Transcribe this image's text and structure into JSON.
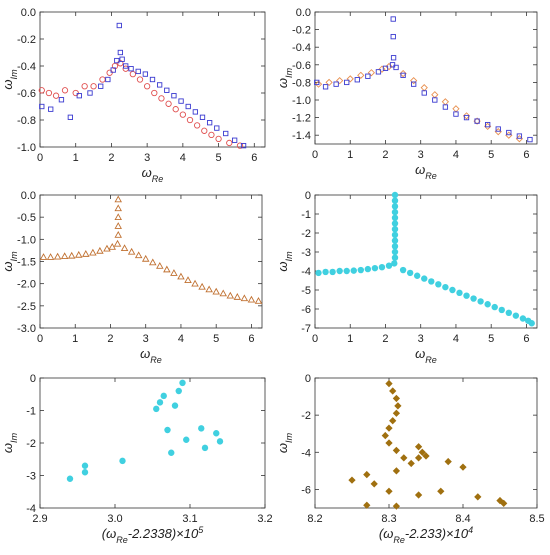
{
  "chart_data": [
    {
      "type": "scatter",
      "xlabel": "ωRe",
      "ylabel": "ωIm",
      "xlim": [
        0,
        6.3
      ],
      "ylim": [
        -1.0,
        0.0
      ],
      "xticks": [
        "0",
        "1",
        "2",
        "3",
        "4",
        "5",
        "6"
      ],
      "yticks": [
        "0.0",
        "-0.2",
        "-0.4",
        "-0.6",
        "-0.8",
        "-1.0"
      ],
      "series": [
        {
          "marker": "circle",
          "color": "#e05050",
          "points": [
            [
              0.05,
              -0.58
            ],
            [
              0.25,
              -0.6
            ],
            [
              0.45,
              -0.62
            ],
            [
              0.7,
              -0.58
            ],
            [
              1.0,
              -0.6
            ],
            [
              1.25,
              -0.55
            ],
            [
              1.5,
              -0.55
            ],
            [
              1.75,
              -0.5
            ],
            [
              1.95,
              -0.45
            ],
            [
              2.1,
              -0.4
            ],
            [
              2.25,
              -0.38
            ],
            [
              2.4,
              -0.42
            ],
            [
              2.6,
              -0.46
            ],
            [
              2.8,
              -0.5
            ],
            [
              3.0,
              -0.55
            ],
            [
              3.2,
              -0.6
            ],
            [
              3.4,
              -0.64
            ],
            [
              3.6,
              -0.68
            ],
            [
              3.8,
              -0.72
            ],
            [
              4.0,
              -0.76
            ],
            [
              4.2,
              -0.8
            ],
            [
              4.4,
              -0.84
            ],
            [
              4.6,
              -0.88
            ],
            [
              4.8,
              -0.91
            ],
            [
              5.0,
              -0.94
            ],
            [
              5.3,
              -0.97
            ],
            [
              5.6,
              -0.99
            ]
          ]
        },
        {
          "marker": "square",
          "color": "#3a3ad0",
          "points": [
            [
              0.05,
              -0.7
            ],
            [
              0.3,
              -0.72
            ],
            [
              0.6,
              -0.65
            ],
            [
              0.85,
              -0.78
            ],
            [
              1.1,
              -0.62
            ],
            [
              1.4,
              -0.6
            ],
            [
              1.7,
              -0.55
            ],
            [
              1.9,
              -0.5
            ],
            [
              2.05,
              -0.43
            ],
            [
              2.15,
              -0.36
            ],
            [
              2.22,
              -0.1
            ],
            [
              2.25,
              -0.3
            ],
            [
              2.3,
              -0.35
            ],
            [
              2.4,
              -0.4
            ],
            [
              2.55,
              -0.42
            ],
            [
              2.75,
              -0.44
            ],
            [
              2.95,
              -0.46
            ],
            [
              3.15,
              -0.5
            ],
            [
              3.35,
              -0.54
            ],
            [
              3.55,
              -0.58
            ],
            [
              3.75,
              -0.62
            ],
            [
              3.95,
              -0.66
            ],
            [
              4.15,
              -0.7
            ],
            [
              4.35,
              -0.74
            ],
            [
              4.55,
              -0.78
            ],
            [
              4.75,
              -0.82
            ],
            [
              4.95,
              -0.86
            ],
            [
              5.2,
              -0.9
            ],
            [
              5.45,
              -0.95
            ],
            [
              5.7,
              -0.99
            ]
          ]
        }
      ]
    },
    {
      "type": "scatter",
      "xlabel": "ωRe",
      "ylabel": "ωIm",
      "xlim": [
        0,
        6.3
      ],
      "ylim": [
        -1.5,
        0.0
      ],
      "xticks": [
        "0",
        "1",
        "2",
        "3",
        "4",
        "5",
        "6"
      ],
      "yticks": [
        "0.0",
        "-0.2",
        "-0.4",
        "-0.6",
        "-0.8",
        "-1.0",
        "-1.2",
        "-1.4"
      ],
      "series": [
        {
          "marker": "diamond",
          "color": "#e89050",
          "points": [
            [
              0.1,
              -0.82
            ],
            [
              0.4,
              -0.8
            ],
            [
              0.7,
              -0.78
            ],
            [
              1.0,
              -0.76
            ],
            [
              1.3,
              -0.72
            ],
            [
              1.6,
              -0.69
            ],
            [
              1.9,
              -0.65
            ],
            [
              2.1,
              -0.62
            ],
            [
              2.5,
              -0.7
            ],
            [
              2.8,
              -0.78
            ],
            [
              3.1,
              -0.86
            ],
            [
              3.4,
              -0.94
            ],
            [
              3.7,
              -1.02
            ],
            [
              4.0,
              -1.1
            ],
            [
              4.3,
              -1.18
            ],
            [
              4.6,
              -1.24
            ],
            [
              4.9,
              -1.3
            ],
            [
              5.2,
              -1.36
            ],
            [
              5.5,
              -1.4
            ],
            [
              5.8,
              -1.44
            ]
          ]
        },
        {
          "marker": "square",
          "color": "#3a3ad0",
          "points": [
            [
              0.05,
              -0.8
            ],
            [
              0.3,
              -0.85
            ],
            [
              0.6,
              -0.82
            ],
            [
              0.9,
              -0.8
            ],
            [
              1.2,
              -0.77
            ],
            [
              1.5,
              -0.73
            ],
            [
              1.8,
              -0.68
            ],
            [
              2.0,
              -0.64
            ],
            [
              2.2,
              -0.6
            ],
            [
              2.22,
              -0.08
            ],
            [
              2.22,
              -0.28
            ],
            [
              2.23,
              -0.52
            ],
            [
              2.3,
              -0.63
            ],
            [
              2.5,
              -0.72
            ],
            [
              2.8,
              -0.82
            ],
            [
              3.1,
              -0.92
            ],
            [
              3.4,
              -1.0
            ],
            [
              3.7,
              -1.08
            ],
            [
              4.0,
              -1.16
            ],
            [
              4.3,
              -1.2
            ],
            [
              4.6,
              -1.24
            ],
            [
              4.9,
              -1.28
            ],
            [
              5.2,
              -1.33
            ],
            [
              5.5,
              -1.37
            ],
            [
              5.8,
              -1.41
            ],
            [
              6.1,
              -1.45
            ]
          ]
        }
      ]
    },
    {
      "type": "scatter",
      "xlabel": "ωRe",
      "ylabel": "ωIm",
      "xlim": [
        0,
        6.3
      ],
      "ylim": [
        -3.0,
        0.0
      ],
      "xticks": [
        "0",
        "1",
        "2",
        "3",
        "4",
        "5",
        "6"
      ],
      "yticks": [
        "0.0",
        "-0.5",
        "-1.0",
        "-1.5",
        "-2.0",
        "-2.5",
        "-3.0"
      ],
      "series": [
        {
          "marker": "triangle",
          "color": "#c07030",
          "points": [
            [
              0.1,
              -1.4
            ],
            [
              0.3,
              -1.4
            ],
            [
              0.5,
              -1.39
            ],
            [
              0.7,
              -1.38
            ],
            [
              0.9,
              -1.37
            ],
            [
              1.1,
              -1.35
            ],
            [
              1.3,
              -1.33
            ],
            [
              1.5,
              -1.3
            ],
            [
              1.7,
              -1.26
            ],
            [
              1.9,
              -1.21
            ],
            [
              2.05,
              -1.17
            ],
            [
              2.2,
              -1.1
            ],
            [
              2.22,
              -0.1
            ],
            [
              2.22,
              -0.3
            ],
            [
              2.22,
              -0.5
            ],
            [
              2.22,
              -0.7
            ],
            [
              2.22,
              -0.9
            ],
            [
              2.4,
              -1.2
            ],
            [
              2.6,
              -1.28
            ],
            [
              2.8,
              -1.36
            ],
            [
              3.0,
              -1.44
            ],
            [
              3.2,
              -1.52
            ],
            [
              3.4,
              -1.6
            ],
            [
              3.6,
              -1.68
            ],
            [
              3.8,
              -1.76
            ],
            [
              4.0,
              -1.84
            ],
            [
              4.2,
              -1.92
            ],
            [
              4.4,
              -2.0
            ],
            [
              4.6,
              -2.07
            ],
            [
              4.8,
              -2.13
            ],
            [
              5.0,
              -2.18
            ],
            [
              5.2,
              -2.22
            ],
            [
              5.4,
              -2.27
            ],
            [
              5.6,
              -2.3
            ],
            [
              5.8,
              -2.33
            ],
            [
              6.0,
              -2.36
            ],
            [
              6.2,
              -2.39
            ]
          ]
        }
      ]
    },
    {
      "type": "scatter",
      "xlabel": "ωRe",
      "ylabel": "ωIm",
      "xlim": [
        0,
        6.3
      ],
      "ylim": [
        -7.0,
        0.0
      ],
      "xticks": [
        "0",
        "1",
        "2",
        "3",
        "4",
        "5",
        "6"
      ],
      "yticks": [
        "0",
        "-1",
        "-2",
        "-3",
        "-4",
        "-5",
        "-6",
        "-7"
      ],
      "series": [
        {
          "marker": "circle-filled",
          "color": "#40d0e0",
          "points": [
            [
              0.1,
              -4.1
            ],
            [
              0.3,
              -4.05
            ],
            [
              0.5,
              -4.05
            ],
            [
              0.7,
              -4.0
            ],
            [
              0.9,
              -4.0
            ],
            [
              1.1,
              -3.98
            ],
            [
              1.3,
              -3.95
            ],
            [
              1.5,
              -3.9
            ],
            [
              1.7,
              -3.85
            ],
            [
              1.9,
              -3.8
            ],
            [
              2.1,
              -3.72
            ],
            [
              2.25,
              -3.6
            ],
            [
              2.27,
              0.0
            ],
            [
              2.27,
              -0.3
            ],
            [
              2.27,
              -0.6
            ],
            [
              2.27,
              -0.9
            ],
            [
              2.27,
              -1.2
            ],
            [
              2.27,
              -1.5
            ],
            [
              2.27,
              -1.8
            ],
            [
              2.27,
              -2.1
            ],
            [
              2.27,
              -2.4
            ],
            [
              2.27,
              -2.7
            ],
            [
              2.27,
              -3.0
            ],
            [
              2.27,
              -3.3
            ],
            [
              2.5,
              -3.95
            ],
            [
              2.7,
              -4.1
            ],
            [
              2.9,
              -4.25
            ],
            [
              3.1,
              -4.4
            ],
            [
              3.3,
              -4.55
            ],
            [
              3.5,
              -4.7
            ],
            [
              3.7,
              -4.85
            ],
            [
              3.9,
              -5.0
            ],
            [
              4.1,
              -5.15
            ],
            [
              4.3,
              -5.3
            ],
            [
              4.5,
              -5.45
            ],
            [
              4.7,
              -5.6
            ],
            [
              4.9,
              -5.75
            ],
            [
              5.1,
              -5.9
            ],
            [
              5.3,
              -6.05
            ],
            [
              5.5,
              -6.2
            ],
            [
              5.7,
              -6.35
            ],
            [
              5.9,
              -6.5
            ],
            [
              6.05,
              -6.62
            ],
            [
              6.15,
              -6.75
            ]
          ]
        }
      ]
    },
    {
      "type": "scatter",
      "xlabel": "(ωRe-2.2338)×10^5",
      "ylabel": "ωIm",
      "xlim": [
        2.9,
        3.2
      ],
      "ylim": [
        -4.0,
        0.0
      ],
      "xticks": [
        "2.9",
        "3.0",
        "3.1",
        "3.2"
      ],
      "yticks": [
        "0",
        "-1",
        "-2",
        "-3",
        "-4"
      ],
      "series": [
        {
          "marker": "circle-filled",
          "color": "#40d0e0",
          "points": [
            [
              2.94,
              -3.1
            ],
            [
              2.96,
              -2.7
            ],
            [
              2.96,
              -2.9
            ],
            [
              3.01,
              -2.55
            ],
            [
              3.055,
              -0.95
            ],
            [
              3.06,
              -0.75
            ],
            [
              3.065,
              -0.55
            ],
            [
              3.07,
              -1.6
            ],
            [
              3.075,
              -2.3
            ],
            [
              3.08,
              -0.85
            ],
            [
              3.085,
              -0.4
            ],
            [
              3.09,
              -0.15
            ],
            [
              3.095,
              -1.9
            ],
            [
              3.115,
              -1.55
            ],
            [
              3.12,
              -2.15
            ],
            [
              3.135,
              -1.7
            ],
            [
              3.14,
              -1.95
            ]
          ]
        }
      ]
    },
    {
      "type": "scatter",
      "xlabel": "(ωRe-2.233)×10^4",
      "ylabel": "ωIm",
      "xlim": [
        8.2,
        8.5
      ],
      "ylim": [
        -7.0,
        0.0
      ],
      "xticks": [
        "8.2",
        "8.3",
        "8.4",
        "8.5"
      ],
      "yticks": [
        "0",
        "-2",
        "-4",
        "-6"
      ],
      "series": [
        {
          "marker": "diamond-filled",
          "color": "#a07010",
          "points": [
            [
              8.3,
              -0.3
            ],
            [
              8.305,
              -0.7
            ],
            [
              8.31,
              -1.1
            ],
            [
              8.312,
              -1.5
            ],
            [
              8.31,
              -1.9
            ],
            [
              8.305,
              -2.3
            ],
            [
              8.3,
              -2.7
            ],
            [
              8.295,
              -3.1
            ],
            [
              8.3,
              -3.5
            ],
            [
              8.31,
              -3.9
            ],
            [
              8.32,
              -4.3
            ],
            [
              8.33,
              -4.6
            ],
            [
              8.34,
              -4.3
            ],
            [
              8.345,
              -4.0
            ],
            [
              8.34,
              -3.7
            ],
            [
              8.35,
              -4.2
            ],
            [
              8.38,
              -4.5
            ],
            [
              8.4,
              -4.8
            ],
            [
              8.31,
              -5.0
            ],
            [
              8.27,
              -5.2
            ],
            [
              8.25,
              -5.5
            ],
            [
              8.28,
              -5.7
            ],
            [
              8.3,
              -6.1
            ],
            [
              8.34,
              -6.3
            ],
            [
              8.37,
              -6.1
            ],
            [
              8.42,
              -6.4
            ],
            [
              8.45,
              -6.6
            ],
            [
              8.455,
              -6.75
            ],
            [
              8.31,
              -6.9
            ],
            [
              8.27,
              -6.85
            ]
          ]
        }
      ]
    }
  ]
}
